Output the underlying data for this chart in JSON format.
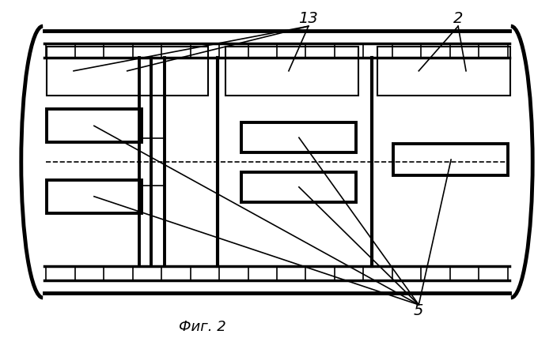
{
  "fig_width": 6.99,
  "fig_height": 4.28,
  "dpi": 100,
  "bg_color": "#ffffff",
  "line_color": "#000000",
  "caption": "Фиг. 2",
  "caption_fontsize": 13,
  "label_13": "13",
  "label_2": "2",
  "label_5": "5",
  "label_fontsize": 14,
  "lw_main": 2.5,
  "lw_thick": 3.5,
  "lw_thin": 1.2
}
